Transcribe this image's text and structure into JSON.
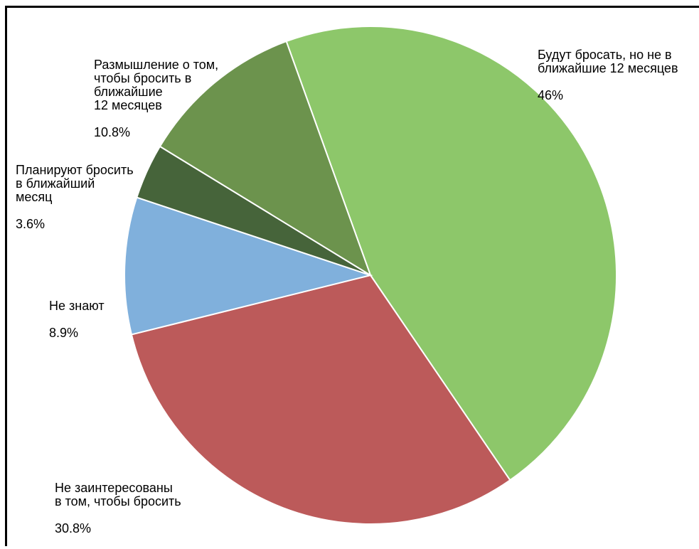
{
  "chart_data": {
    "type": "pie",
    "title": "",
    "slices": [
      {
        "label": "Будут бросать, но не в ближайшие 12 месяцев",
        "percent_text": "46%",
        "value": 46.0,
        "color": "#8dc76a"
      },
      {
        "label": "Не заинтересованы в том, чтобы бросить",
        "percent_text": "30.8%",
        "value": 30.8,
        "color": "#bc5a5a"
      },
      {
        "label": "Не знают",
        "percent_text": "8.9%",
        "value": 8.9,
        "color": "#80b0dc"
      },
      {
        "label": "Планируют бросить в ближайший месяц",
        "percent_text": "3.6%",
        "value": 3.6,
        "color": "#46643a"
      },
      {
        "label": "Размышление о том, чтобы бросить в ближайшие 12 месяцев",
        "percent_text": "10.8%",
        "value": 10.8,
        "color": "#6c934d"
      }
    ]
  },
  "labels": {
    "l0_name": "Будут бросать, но не в\nближайшие 12 месяцев",
    "l0_pct": "46%",
    "l1_name": "Не заинтересованы\nв том, чтобы бросить",
    "l1_pct": "30.8%",
    "l2_name": "Не знают",
    "l2_pct": "8.9%",
    "l3_name": "Планируют бросить\nв ближайший\nмесяц",
    "l3_pct": "3.6%",
    "l4_name": "Размышление о том,\nчтобы бросить в\nближайшие\n12 месяцев",
    "l4_pct": "10.8%"
  }
}
